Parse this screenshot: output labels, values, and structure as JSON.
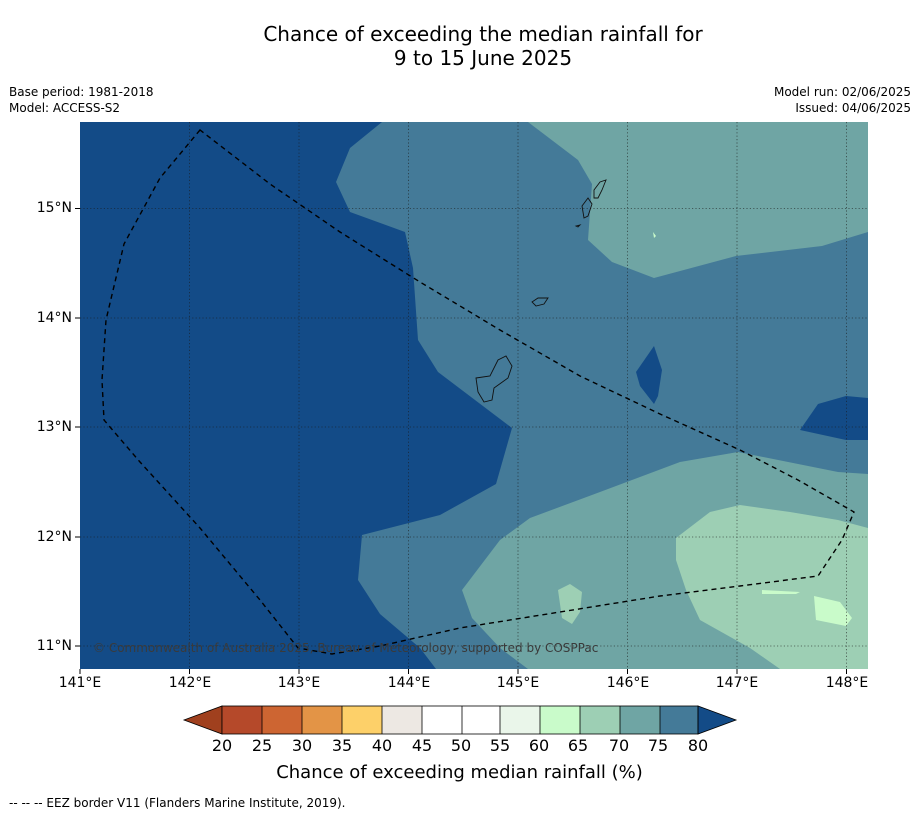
{
  "title_line1": "Chance of exceeding the median rainfall for",
  "title_line2": "9 to 15 June 2025",
  "meta_left": [
    "Base period: 1981-2018",
    "Model: ACCESS-S2"
  ],
  "meta_right": [
    "Model run: 02/06/2025",
    "Issued: 04/06/2025"
  ],
  "copyright": "© Commonwealth of Australia 2025, Bureau of Meteorology, supported by COSPPac",
  "footnote": "--  --  -- EEZ border V11 (Flanders Marine Institute, 2019).",
  "axes": {
    "lat_labels": [
      "15°N",
      "14°N",
      "13°N",
      "12°N",
      "11°N"
    ],
    "lon_labels": [
      "141°E",
      "142°E",
      "143°E",
      "144°E",
      "145°E",
      "146°E",
      "147°E",
      "148°E"
    ]
  },
  "colorbar": {
    "label": "Chance of exceeding median rainfall (%)",
    "ticks": [
      "20",
      "25",
      "30",
      "35",
      "40",
      "45",
      "50",
      "55",
      "60",
      "65",
      "70",
      "75",
      "80"
    ],
    "colors": {
      "under": "#a0401e",
      "bins": [
        "#b5492a",
        "#cd6532",
        "#e39446",
        "#fdd069",
        "#ede8e3",
        "#ffffff",
        "#ffffff",
        "#eaf6ea",
        "#c9fbca",
        "#9dcfb4",
        "#6fa5a4",
        "#447a98"
      ],
      "over": "#134b87"
    }
  }
}
